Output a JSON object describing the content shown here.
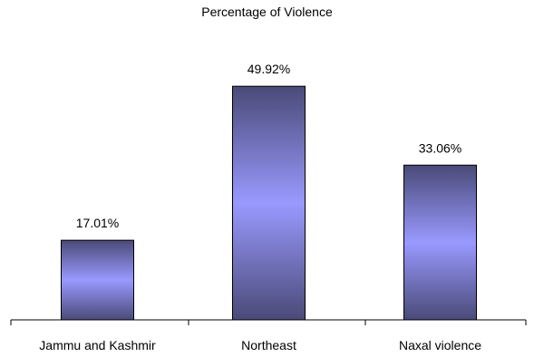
{
  "chart_data": {
    "type": "bar",
    "title": "Percentage of Violence",
    "categories": [
      "Jammu and Kashmir",
      "Northeast",
      "Naxal violence"
    ],
    "values": [
      17.01,
      49.92,
      33.06
    ],
    "data_labels": [
      "17.01%",
      "49.92%",
      "33.06%"
    ],
    "xlabel": "",
    "ylabel": "",
    "ylim": [
      0,
      57.7
    ],
    "grid": false,
    "legend": "none",
    "colors": {
      "bar_center": "#9999ff",
      "bar_edge": "#4a4a78",
      "bar_stroke": "#000000",
      "axis": "#000000"
    }
  }
}
